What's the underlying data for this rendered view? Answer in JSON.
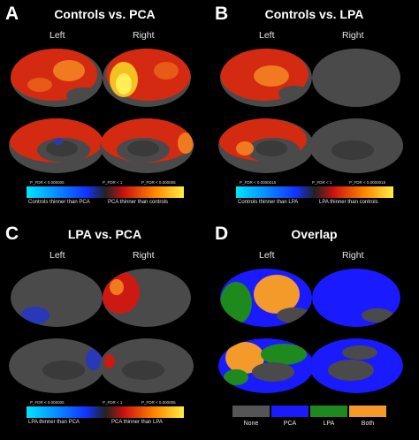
{
  "panels": {
    "a": {
      "letter": "A",
      "title": "Controls vs. PCA",
      "left": "Left",
      "right": "Right",
      "pval_low": "P_FDR < 0.000005",
      "pval_mid": "P_FDR < 1",
      "pval_high": "P_FDR < 0.000005",
      "neg_label": "Controls thinner than PCA",
      "pos_label": "PCA thinner than controls"
    },
    "b": {
      "letter": "B",
      "title": "Controls vs. LPA",
      "left": "Left",
      "right": "Right",
      "pval_low": "P_FDR < 0.0000015",
      "pval_mid": "P_FDR < 1",
      "pval_high": "P_FDR < 0.0000015",
      "neg_label": "Controls thinner than LPA",
      "pos_label": "LPA thinner than controls"
    },
    "c": {
      "letter": "C",
      "title": "LPA vs. PCA",
      "left": "Left",
      "right": "Right",
      "pval_low": "P_FDR < 0.000005",
      "pval_mid": "P_FDR < 1",
      "pval_high": "P_FDR < 0.000005",
      "neg_label": "LPA thinner than PCA",
      "pos_label": "PCA thinner than LPA"
    },
    "d": {
      "letter": "D",
      "title": "Overlap",
      "left": "Left",
      "right": "Right",
      "legend": [
        "None",
        "PCA",
        "LPA",
        "Both"
      ]
    }
  },
  "colors": {
    "none": "#555555",
    "pca": "#1a1aff",
    "lpa": "#1e8a1e",
    "both": "#f39a2a",
    "brain": "#4a4a4a"
  }
}
